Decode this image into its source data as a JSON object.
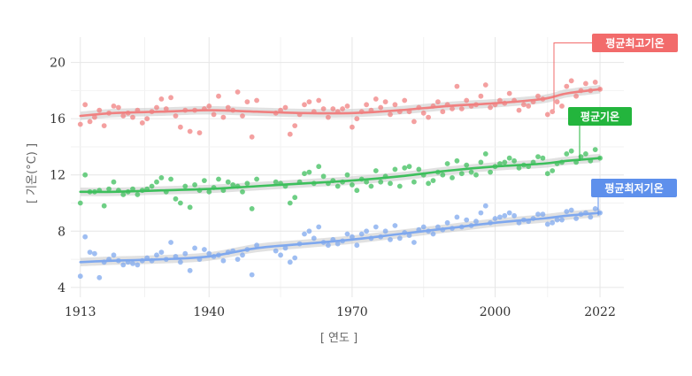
{
  "chart_data": {
    "type": "scatter",
    "title": "",
    "xlabel": "[ 연도 ]",
    "ylabel": "[ 기온(°C) ]",
    "xlim": [
      1911,
      2027
    ],
    "ylim": [
      3.3,
      21.8
    ],
    "xticks": [
      1913,
      1940,
      1970,
      2000,
      2022
    ],
    "xtick_labels": [
      "1913",
      "1940",
      "1970",
      "2000",
      "2022"
    ],
    "yticks": [
      4,
      8,
      12,
      16,
      20
    ],
    "ytick_labels": [
      "4",
      "8",
      "12",
      "16",
      "20"
    ],
    "grid": true,
    "series": [
      {
        "name": "평균최고기온",
        "color": "#f08080",
        "label_color": "#f26b6b",
        "years": [
          1913,
          1914,
          1915,
          1916,
          1917,
          1918,
          1919,
          1920,
          1921,
          1922,
          1923,
          1924,
          1925,
          1926,
          1927,
          1928,
          1929,
          1930,
          1931,
          1932,
          1933,
          1934,
          1935,
          1936,
          1937,
          1938,
          1939,
          1940,
          1941,
          1942,
          1943,
          1944,
          1945,
          1946,
          1947,
          1948,
          1949,
          1950,
          1954,
          1955,
          1956,
          1957,
          1958,
          1959,
          1960,
          1961,
          1962,
          1963,
          1964,
          1965,
          1966,
          1967,
          1968,
          1969,
          1970,
          1971,
          1972,
          1973,
          1974,
          1975,
          1976,
          1977,
          1978,
          1979,
          1980,
          1981,
          1982,
          1983,
          1984,
          1985,
          1986,
          1987,
          1988,
          1989,
          1990,
          1991,
          1992,
          1993,
          1994,
          1995,
          1996,
          1997,
          1998,
          1999,
          2000,
          2001,
          2002,
          2003,
          2004,
          2005,
          2006,
          2007,
          2008,
          2009,
          2010,
          2011,
          2012,
          2013,
          2014,
          2015,
          2016,
          2017,
          2018,
          2019,
          2020,
          2021,
          2022
        ],
        "values": [
          15.6,
          17.0,
          15.8,
          16.1,
          16.6,
          15.5,
          16.4,
          16.9,
          16.8,
          16.2,
          16.4,
          16.1,
          16.6,
          15.7,
          16.0,
          16.5,
          16.8,
          17.4,
          16.7,
          17.5,
          16.2,
          15.4,
          16.6,
          15.1,
          16.6,
          15.0,
          16.7,
          16.9,
          16.3,
          17.6,
          16.1,
          16.8,
          16.6,
          17.9,
          16.2,
          17.2,
          14.7,
          17.3,
          16.4,
          16.6,
          16.8,
          14.9,
          15.5,
          16.3,
          17.0,
          17.2,
          16.5,
          17.3,
          16.7,
          16.1,
          16.7,
          16.5,
          16.7,
          16.9,
          15.4,
          16.0,
          16.5,
          17.0,
          16.6,
          17.4,
          16.8,
          17.2,
          16.3,
          17.0,
          16.5,
          17.3,
          16.5,
          15.8,
          16.8,
          16.4,
          16.1,
          16.9,
          17.2,
          16.5,
          17.0,
          16.7,
          18.3,
          16.7,
          17.3,
          16.9,
          17.0,
          17.6,
          18.4,
          16.8,
          17.0,
          17.3,
          17.1,
          17.8,
          17.3,
          16.6,
          17.0,
          16.9,
          17.2,
          17.6,
          17.4,
          16.3,
          16.5,
          17.2,
          16.9,
          18.3,
          18.7,
          17.6,
          18.0,
          18.5,
          18.0,
          18.6,
          18.1
        ],
        "trend_years": [
          1913,
          1920,
          1930,
          1940,
          1950,
          1960,
          1970,
          1980,
          1990,
          2000,
          2010,
          2015,
          2022
        ],
        "trend_values": [
          16.2,
          16.4,
          16.5,
          16.6,
          16.5,
          16.4,
          16.4,
          16.6,
          16.9,
          17.1,
          17.4,
          17.8,
          18.1
        ]
      },
      {
        "name": "평균기온",
        "color": "#3dbf5c",
        "label_color": "#23b53d",
        "years": [
          1913,
          1914,
          1915,
          1916,
          1917,
          1918,
          1919,
          1920,
          1921,
          1922,
          1923,
          1924,
          1925,
          1926,
          1927,
          1928,
          1929,
          1930,
          1931,
          1932,
          1933,
          1934,
          1935,
          1936,
          1937,
          1938,
          1939,
          1940,
          1941,
          1942,
          1943,
          1944,
          1945,
          1946,
          1947,
          1948,
          1949,
          1950,
          1954,
          1955,
          1956,
          1957,
          1958,
          1959,
          1960,
          1961,
          1962,
          1963,
          1964,
          1965,
          1966,
          1967,
          1968,
          1969,
          1970,
          1971,
          1972,
          1973,
          1974,
          1975,
          1976,
          1977,
          1978,
          1979,
          1980,
          1981,
          1982,
          1983,
          1984,
          1985,
          1986,
          1987,
          1988,
          1989,
          1990,
          1991,
          1992,
          1993,
          1994,
          1995,
          1996,
          1997,
          1998,
          1999,
          2000,
          2001,
          2002,
          2003,
          2004,
          2005,
          2006,
          2007,
          2008,
          2009,
          2010,
          2011,
          2012,
          2013,
          2014,
          2015,
          2016,
          2017,
          2018,
          2019,
          2020,
          2021,
          2022
        ],
        "values": [
          10.0,
          12.0,
          10.8,
          10.8,
          10.9,
          9.8,
          11.0,
          11.5,
          10.9,
          10.6,
          10.8,
          11.0,
          10.6,
          10.9,
          11.0,
          11.2,
          11.5,
          11.8,
          10.8,
          11.7,
          10.3,
          10.0,
          11.2,
          9.7,
          11.3,
          10.9,
          11.6,
          10.8,
          11.1,
          11.7,
          10.9,
          11.5,
          11.3,
          11.2,
          10.8,
          11.4,
          9.6,
          11.7,
          11.5,
          11.4,
          11.2,
          10.0,
          10.4,
          11.5,
          12.1,
          12.2,
          11.4,
          12.6,
          11.9,
          11.4,
          11.6,
          11.2,
          11.5,
          12.0,
          11.3,
          10.9,
          11.7,
          11.5,
          11.2,
          12.3,
          11.5,
          11.9,
          11.4,
          12.4,
          11.2,
          12.5,
          12.6,
          11.5,
          12.4,
          12.0,
          11.4,
          11.6,
          12.2,
          12.0,
          12.8,
          11.8,
          13.0,
          12.1,
          12.7,
          12.2,
          12.0,
          12.9,
          13.5,
          12.2,
          12.6,
          12.8,
          12.9,
          13.2,
          13.0,
          12.5,
          12.7,
          12.6,
          12.9,
          13.3,
          13.2,
          12.1,
          12.3,
          12.8,
          12.9,
          13.5,
          13.7,
          12.9,
          13.3,
          13.5,
          13.0,
          13.8,
          13.2
        ],
        "trend_years": [
          1913,
          1920,
          1930,
          1940,
          1950,
          1960,
          1970,
          1980,
          1990,
          2000,
          2010,
          2015,
          2022
        ],
        "trend_values": [
          10.8,
          10.8,
          10.9,
          11.0,
          11.2,
          11.4,
          11.6,
          11.9,
          12.3,
          12.6,
          12.8,
          13.0,
          13.2
        ]
      },
      {
        "name": "평균최저기온",
        "color": "#7fa8ee",
        "label_color": "#5e90ec",
        "years": [
          1913,
          1914,
          1915,
          1916,
          1917,
          1918,
          1919,
          1920,
          1921,
          1922,
          1923,
          1924,
          1925,
          1926,
          1927,
          1928,
          1929,
          1930,
          1931,
          1932,
          1933,
          1934,
          1935,
          1936,
          1937,
          1938,
          1939,
          1940,
          1941,
          1942,
          1943,
          1944,
          1945,
          1946,
          1947,
          1948,
          1949,
          1950,
          1954,
          1955,
          1956,
          1957,
          1958,
          1959,
          1960,
          1961,
          1962,
          1963,
          1964,
          1965,
          1966,
          1967,
          1968,
          1969,
          1970,
          1971,
          1972,
          1973,
          1974,
          1975,
          1976,
          1977,
          1978,
          1979,
          1980,
          1981,
          1982,
          1983,
          1984,
          1985,
          1986,
          1987,
          1988,
          1989,
          1990,
          1991,
          1992,
          1993,
          1994,
          1995,
          1996,
          1997,
          1998,
          1999,
          2000,
          2001,
          2002,
          2003,
          2004,
          2005,
          2006,
          2007,
          2008,
          2009,
          2010,
          2011,
          2012,
          2013,
          2014,
          2015,
          2016,
          2017,
          2018,
          2019,
          2020,
          2021,
          2022
        ],
        "values": [
          4.8,
          7.6,
          6.5,
          6.4,
          4.7,
          5.8,
          6.0,
          6.3,
          5.9,
          5.6,
          5.8,
          5.7,
          5.6,
          5.9,
          6.1,
          5.9,
          6.3,
          6.5,
          6.0,
          7.2,
          6.2,
          5.8,
          6.4,
          5.2,
          6.8,
          6.0,
          6.7,
          6.4,
          6.2,
          6.3,
          5.9,
          6.5,
          6.6,
          6.0,
          6.3,
          6.7,
          4.9,
          7.0,
          6.6,
          6.3,
          6.8,
          5.8,
          6.1,
          7.1,
          7.8,
          8.0,
          7.5,
          8.3,
          7.2,
          7.0,
          7.4,
          7.1,
          7.3,
          7.8,
          7.6,
          7.0,
          7.8,
          8.0,
          7.5,
          8.3,
          7.6,
          8.0,
          7.4,
          8.4,
          7.5,
          7.9,
          7.7,
          7.2,
          8.1,
          8.3,
          8.0,
          7.8,
          8.3,
          8.1,
          8.6,
          8.2,
          9.0,
          8.3,
          8.8,
          8.4,
          8.7,
          9.3,
          9.8,
          8.6,
          8.9,
          9.0,
          9.1,
          9.3,
          9.1,
          8.6,
          8.8,
          8.7,
          8.9,
          9.2,
          9.2,
          8.5,
          8.6,
          8.8,
          8.8,
          9.4,
          9.5,
          8.9,
          9.2,
          9.3,
          9.0,
          9.6,
          9.3
        ],
        "trend_years": [
          1913,
          1920,
          1930,
          1940,
          1950,
          1960,
          1970,
          1980,
          1990,
          2000,
          2010,
          2015,
          2022
        ],
        "trend_values": [
          5.8,
          5.9,
          6.0,
          6.2,
          6.8,
          7.1,
          7.4,
          7.8,
          8.2,
          8.6,
          8.9,
          9.1,
          9.3
        ]
      }
    ]
  }
}
